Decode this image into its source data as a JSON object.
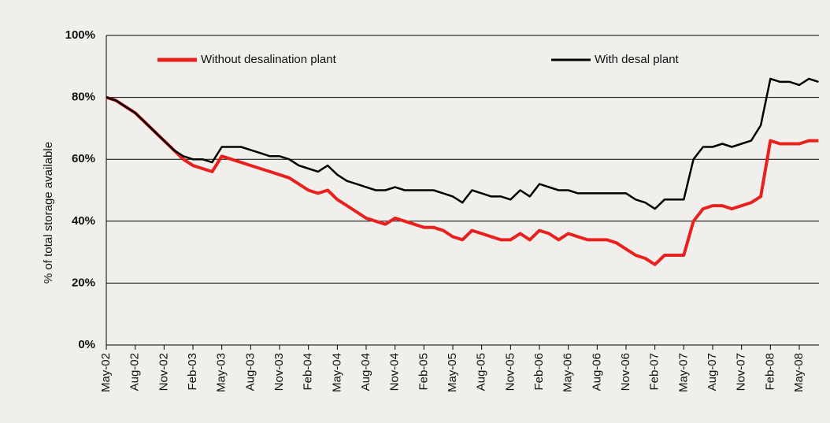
{
  "chart_data": {
    "type": "line",
    "y_label": "% of total storage available",
    "categories": [
      "May-02",
      null,
      null,
      "Aug-02",
      null,
      null,
      "Nov-02",
      null,
      null,
      "Feb-03",
      null,
      null,
      "May-03",
      null,
      null,
      "Aug-03",
      null,
      null,
      "Nov-03",
      null,
      null,
      "Feb-04",
      null,
      null,
      "May-04",
      null,
      null,
      "Aug-04",
      null,
      null,
      "Nov-04",
      null,
      null,
      "Feb-05",
      null,
      null,
      "May-05",
      null,
      null,
      "Aug-05",
      null,
      null,
      "Nov-05",
      null,
      null,
      "Feb-06",
      null,
      null,
      "May-06",
      null,
      null,
      "Aug-06",
      null,
      null,
      "Nov-06",
      null,
      null,
      "Feb-07",
      null,
      null,
      "May-07",
      null,
      null,
      "Aug-07",
      null,
      null,
      "Nov-07",
      null,
      null,
      "Feb-08",
      null,
      null,
      "May-08",
      null,
      null
    ],
    "series": [
      {
        "name": "Without desalination plant",
        "color": "#e8201e",
        "values": [
          80,
          79,
          77,
          75,
          72,
          69,
          66,
          63,
          60,
          58,
          57,
          56,
          61,
          60,
          59,
          58,
          57,
          56,
          55,
          54,
          52,
          50,
          49,
          50,
          47,
          45,
          43,
          41,
          40,
          39,
          41,
          40,
          39,
          38,
          38,
          37,
          35,
          34,
          37,
          36,
          35,
          34,
          34,
          36,
          34,
          37,
          36,
          34,
          36,
          35,
          34,
          34,
          34,
          33,
          31,
          29,
          28,
          26,
          29,
          29,
          29,
          40,
          44,
          45,
          45,
          44,
          45,
          46,
          48,
          66,
          65,
          65,
          65,
          66,
          66
        ]
      },
      {
        "name": "With desal plant",
        "color": "#000000",
        "values": [
          80,
          79,
          77,
          75,
          72,
          69,
          66,
          63,
          61,
          60,
          60,
          59,
          64,
          64,
          64,
          63,
          62,
          61,
          61,
          60,
          58,
          57,
          56,
          58,
          55,
          53,
          52,
          51,
          50,
          50,
          51,
          50,
          50,
          50,
          50,
          49,
          48,
          46,
          50,
          49,
          48,
          48,
          47,
          50,
          48,
          52,
          51,
          50,
          50,
          49,
          49,
          49,
          49,
          49,
          49,
          47,
          46,
          44,
          47,
          47,
          47,
          60,
          64,
          64,
          65,
          64,
          65,
          66,
          71,
          86,
          85,
          85,
          84,
          86,
          85
        ]
      }
    ],
    "ylim": [
      0,
      100
    ],
    "yticks": [
      {
        "value": 0,
        "label": "0%"
      },
      {
        "value": 20,
        "label": "20%"
      },
      {
        "value": 40,
        "label": "40%"
      },
      {
        "value": 60,
        "label": "60%"
      },
      {
        "value": 80,
        "label": "80%"
      },
      {
        "value": 100,
        "label": "100%"
      }
    ],
    "grid": true
  }
}
